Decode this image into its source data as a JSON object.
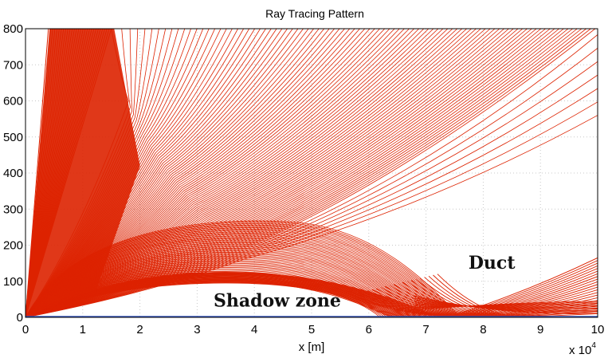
{
  "chart_data": {
    "type": "line",
    "title": "Ray Tracing Pattern",
    "xlabel": "x [m]",
    "ylabel": "",
    "x_multiplier_label": "x 10",
    "x_multiplier_exponent": "4",
    "xlim": [
      0,
      10
    ],
    "ylim": [
      0,
      800
    ],
    "xticks": [
      "0",
      "1",
      "2",
      "3",
      "4",
      "5",
      "6",
      "7",
      "8",
      "9",
      "10"
    ],
    "yticks": [
      "0",
      "100",
      "200",
      "300",
      "400",
      "500",
      "600",
      "700",
      "800"
    ],
    "grid": true,
    "line_color": "#dd2200",
    "ground_color": "#3355bb",
    "annotations": [
      {
        "text": "Duct",
        "x": 8.15,
        "y": 135
      },
      {
        "text": "Shadow zone",
        "x": 4.4,
        "y": 30
      }
    ],
    "ray_families": {
      "escaping_steep": {
        "count": 30,
        "top_x_range": [
          0.4,
          1.5
        ]
      },
      "escaping_bending": {
        "count": 100,
        "top_x_range": [
          1.5,
          10
        ],
        "end_y_range": [
          800,
          560
        ]
      },
      "trapped_arcs": {
        "count": 45,
        "apex_y_range": [
          100,
          265
        ]
      },
      "duct_rays": {
        "count": 22,
        "end_y_range": [
          10,
          165
        ]
      }
    }
  }
}
